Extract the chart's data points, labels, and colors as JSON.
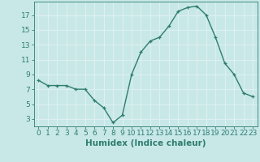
{
  "x": [
    0,
    1,
    2,
    3,
    4,
    5,
    6,
    7,
    8,
    9,
    10,
    11,
    12,
    13,
    14,
    15,
    16,
    17,
    18,
    19,
    20,
    21,
    22,
    23
  ],
  "y": [
    8.2,
    7.5,
    7.5,
    7.5,
    7.0,
    7.0,
    5.5,
    4.5,
    2.5,
    3.5,
    9.0,
    12.0,
    13.5,
    14.0,
    15.5,
    17.5,
    18.0,
    18.2,
    17.0,
    14.0,
    10.5,
    9.0,
    6.5,
    6.0
  ],
  "xlabel": "Humidex (Indice chaleur)",
  "ylim": [
    2,
    18.8
  ],
  "xlim": [
    -0.5,
    23.5
  ],
  "yticks": [
    3,
    5,
    7,
    9,
    11,
    13,
    15,
    17
  ],
  "xticks": [
    0,
    1,
    2,
    3,
    4,
    5,
    6,
    7,
    8,
    9,
    10,
    11,
    12,
    13,
    14,
    15,
    16,
    17,
    18,
    19,
    20,
    21,
    22,
    23
  ],
  "xtick_labels": [
    "0",
    "1",
    "2",
    "3",
    "4",
    "5",
    "6",
    "7",
    "8",
    "9",
    "10",
    "11",
    "12",
    "13",
    "14",
    "15",
    "16",
    "17",
    "18",
    "19",
    "20",
    "21",
    "22",
    "23"
  ],
  "line_color": "#2e7d6e",
  "marker": "+",
  "bg_color": "#c8e8e8",
  "grid_color": "#e0f0f0",
  "axes_color": "#2e7d6e",
  "label_color": "#2e7d6e",
  "tick_color": "#2e7d6e",
  "xlabel_fontsize": 7.5,
  "tick_fontsize": 6.5
}
